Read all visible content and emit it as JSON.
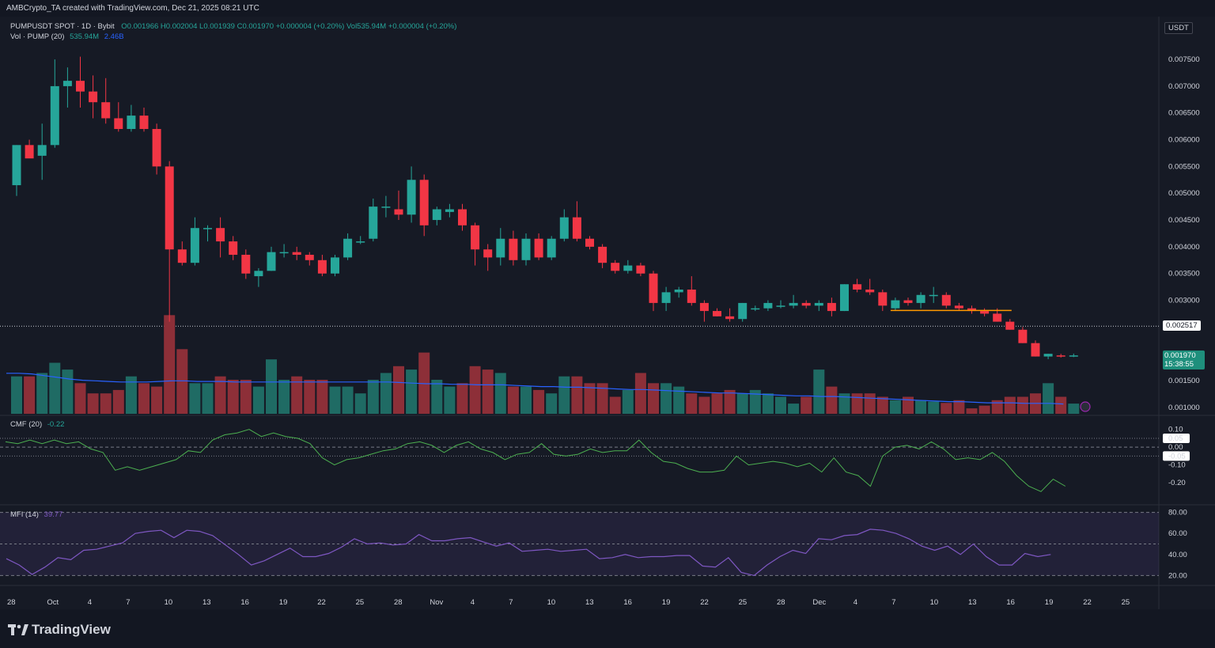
{
  "header": {
    "credit": "AMBCrypto_TA created with TradingView.com, Dec 21, 2025 08:21 UTC"
  },
  "legend": {
    "symbol": "PUMPUSDT SPOT · 1D · Bybit",
    "ohlc": "O0.001966  H0.002004  L0.001939  C0.001970  +0.000004 (+0.20%)  Vol535.94M  +0.000004 (+0.20%)",
    "vol_name": "Vol · PUMP (20)",
    "vol_value": "535.94M",
    "vol_ma": "2.46B",
    "cmf_name": "CMF (20)",
    "cmf_value": "-0.22",
    "mfi_name": "MFI (14)",
    "mfi_value": "39.77"
  },
  "currency_badge": "USDT",
  "price_tags": {
    "dotted_level": "0.002517",
    "last_price": "0.001970",
    "countdown": "15:38:55"
  },
  "brand": "TradingView",
  "colors": {
    "up": "#26a69a",
    "down": "#f23645",
    "vol_up": "#1f6b64",
    "vol_down": "#8d2f38",
    "ma": "#2962ff",
    "cmf": "#4caf50",
    "mfi": "#7e57c2",
    "bg": "#161a25"
  },
  "chart_data": [
    {
      "type": "candlestick",
      "ylim": [
        0.00085,
        0.0079
      ],
      "y_ticks": [
        "0.007500",
        "0.007000",
        "0.006500",
        "0.006000",
        "0.005500",
        "0.005000",
        "0.004500",
        "0.004000",
        "0.003500",
        "0.003000",
        "0.001500",
        "0.001000"
      ],
      "x_ticks": [
        "28",
        "Oct",
        "4",
        "7",
        "10",
        "13",
        "16",
        "19",
        "22",
        "25",
        "28",
        "Nov",
        "4",
        "7",
        "10",
        "13",
        "16",
        "19",
        "22",
        "25",
        "28",
        "Dec",
        "4",
        "7",
        "10",
        "13",
        "16",
        "19",
        "22",
        "25"
      ],
      "candles": [
        [
          0.00515,
          0.0059,
          0.00495,
          0.0059
        ],
        [
          0.0059,
          0.006,
          0.0057,
          0.00565
        ],
        [
          0.0057,
          0.0063,
          0.00525,
          0.0059
        ],
        [
          0.0059,
          0.0075,
          0.00585,
          0.007
        ],
        [
          0.007,
          0.00735,
          0.0066,
          0.0071
        ],
        [
          0.0071,
          0.00755,
          0.0066,
          0.0069
        ],
        [
          0.0069,
          0.0072,
          0.0064,
          0.0067
        ],
        [
          0.0067,
          0.00715,
          0.0063,
          0.0064
        ],
        [
          0.0064,
          0.0067,
          0.00615,
          0.0062
        ],
        [
          0.0062,
          0.00665,
          0.00615,
          0.00645
        ],
        [
          0.00645,
          0.0066,
          0.00615,
          0.0062
        ],
        [
          0.0062,
          0.0063,
          0.00535,
          0.0055
        ],
        [
          0.0055,
          0.0056,
          0.0026,
          0.00395
        ],
        [
          0.00395,
          0.0041,
          0.00365,
          0.0037
        ],
        [
          0.0037,
          0.00455,
          0.00365,
          0.00435
        ],
        [
          0.00435,
          0.0044,
          0.0041,
          0.00435
        ],
        [
          0.00435,
          0.00455,
          0.0038,
          0.0041
        ],
        [
          0.0041,
          0.0042,
          0.00375,
          0.00385
        ],
        [
          0.00385,
          0.00395,
          0.0034,
          0.0035
        ],
        [
          0.00345,
          0.0036,
          0.00325,
          0.00355
        ],
        [
          0.00355,
          0.004,
          0.00355,
          0.0039
        ],
        [
          0.0039,
          0.00405,
          0.0038,
          0.0039
        ],
        [
          0.0039,
          0.004,
          0.00375,
          0.00385
        ],
        [
          0.00385,
          0.0039,
          0.00365,
          0.00375
        ],
        [
          0.00375,
          0.00385,
          0.00345,
          0.0035
        ],
        [
          0.0035,
          0.00385,
          0.00345,
          0.0038
        ],
        [
          0.0038,
          0.00425,
          0.00375,
          0.00415
        ],
        [
          0.0041,
          0.0042,
          0.00405,
          0.0041
        ],
        [
          0.00415,
          0.0049,
          0.0041,
          0.00475
        ],
        [
          0.00475,
          0.00495,
          0.00455,
          0.00475
        ],
        [
          0.0047,
          0.00505,
          0.0045,
          0.0046
        ],
        [
          0.0046,
          0.0055,
          0.00445,
          0.00525
        ],
        [
          0.00525,
          0.00535,
          0.0042,
          0.0044
        ],
        [
          0.0045,
          0.00475,
          0.0044,
          0.0047
        ],
        [
          0.00465,
          0.0048,
          0.00455,
          0.0047
        ],
        [
          0.0047,
          0.0048,
          0.0043,
          0.0044
        ],
        [
          0.0044,
          0.00445,
          0.00365,
          0.00395
        ],
        [
          0.00395,
          0.00405,
          0.00355,
          0.0038
        ],
        [
          0.0038,
          0.00435,
          0.00365,
          0.00415
        ],
        [
          0.00415,
          0.0043,
          0.00365,
          0.00375
        ],
        [
          0.00375,
          0.00425,
          0.00365,
          0.00415
        ],
        [
          0.00415,
          0.00425,
          0.00375,
          0.0038
        ],
        [
          0.0038,
          0.0042,
          0.00375,
          0.00415
        ],
        [
          0.00415,
          0.0047,
          0.0041,
          0.00455
        ],
        [
          0.00455,
          0.00485,
          0.0041,
          0.00415
        ],
        [
          0.00415,
          0.0042,
          0.00395,
          0.004
        ],
        [
          0.004,
          0.00405,
          0.0036,
          0.0037
        ],
        [
          0.0037,
          0.00375,
          0.0035,
          0.00355
        ],
        [
          0.00355,
          0.00375,
          0.0035,
          0.00365
        ],
        [
          0.00365,
          0.0037,
          0.00345,
          0.0035
        ],
        [
          0.0035,
          0.00355,
          0.0028,
          0.00295
        ],
        [
          0.00295,
          0.00325,
          0.0028,
          0.00315
        ],
        [
          0.00315,
          0.00325,
          0.00305,
          0.0032
        ],
        [
          0.0032,
          0.00345,
          0.0029,
          0.00295
        ],
        [
          0.00295,
          0.003,
          0.0026,
          0.0028
        ],
        [
          0.0028,
          0.00285,
          0.0027,
          0.0027
        ],
        [
          0.0027,
          0.00285,
          0.0026,
          0.00265
        ],
        [
          0.00265,
          0.00295,
          0.0026,
          0.00295
        ],
        [
          0.00285,
          0.0029,
          0.0028,
          0.00285
        ],
        [
          0.00285,
          0.003,
          0.0028,
          0.00295
        ],
        [
          0.0029,
          0.003,
          0.00285,
          0.0029
        ],
        [
          0.0029,
          0.0031,
          0.00285,
          0.00295
        ],
        [
          0.00295,
          0.003,
          0.00285,
          0.0029
        ],
        [
          0.0029,
          0.003,
          0.0028,
          0.00295
        ],
        [
          0.00295,
          0.00305,
          0.0027,
          0.0028
        ],
        [
          0.0028,
          0.0033,
          0.0028,
          0.0033
        ],
        [
          0.0033,
          0.0034,
          0.00315,
          0.0032
        ],
        [
          0.0032,
          0.0034,
          0.0031,
          0.00315
        ],
        [
          0.00315,
          0.0032,
          0.0028,
          0.0029
        ],
        [
          0.00285,
          0.00305,
          0.0028,
          0.003
        ],
        [
          0.003,
          0.00305,
          0.0029,
          0.00295
        ],
        [
          0.00295,
          0.00315,
          0.00285,
          0.0031
        ],
        [
          0.0031,
          0.00325,
          0.00295,
          0.0031
        ],
        [
          0.0031,
          0.00315,
          0.00285,
          0.0029
        ],
        [
          0.0029,
          0.00295,
          0.0028,
          0.00285
        ],
        [
          0.00285,
          0.0029,
          0.00275,
          0.0028
        ],
        [
          0.0028,
          0.00285,
          0.0027,
          0.00275
        ],
        [
          0.00275,
          0.00285,
          0.0026,
          0.0026
        ],
        [
          0.0026,
          0.00265,
          0.00245,
          0.00245
        ],
        [
          0.00245,
          0.0025,
          0.0022,
          0.0022
        ],
        [
          0.0022,
          0.00225,
          0.00195,
          0.00195
        ],
        [
          0.00195,
          0.002,
          0.0019,
          0.002
        ],
        [
          0.00197,
          0.002,
          0.00193,
          0.00196
        ],
        [
          0.001966,
          0.002004,
          0.001939,
          0.00197
        ]
      ],
      "volume_rel": [
        0.55,
        0.55,
        0.6,
        0.75,
        0.65,
        0.45,
        0.3,
        0.3,
        0.35,
        0.55,
        0.45,
        0.4,
        1.45,
        0.95,
        0.45,
        0.45,
        0.55,
        0.5,
        0.5,
        0.4,
        0.8,
        0.5,
        0.55,
        0.5,
        0.5,
        0.4,
        0.4,
        0.3,
        0.5,
        0.6,
        0.7,
        0.65,
        0.9,
        0.5,
        0.4,
        0.45,
        0.7,
        0.65,
        0.6,
        0.4,
        0.4,
        0.35,
        0.3,
        0.55,
        0.55,
        0.45,
        0.45,
        0.25,
        0.35,
        0.6,
        0.45,
        0.45,
        0.4,
        0.3,
        0.25,
        0.3,
        0.35,
        0.3,
        0.35,
        0.3,
        0.25,
        0.15,
        0.25,
        0.65,
        0.4,
        0.3,
        0.3,
        0.3,
        0.25,
        0.2,
        0.25,
        0.2,
        0.18,
        0.16,
        0.2,
        0.08,
        0.12,
        0.2,
        0.25,
        0.25,
        0.3,
        0.45,
        0.25,
        0.15
      ],
      "volume_ma_rel": [
        0.7,
        0.7,
        0.69,
        0.66,
        0.63,
        0.6,
        0.58,
        0.57,
        0.56,
        0.55,
        0.55,
        0.55,
        0.56,
        0.57,
        0.57,
        0.56,
        0.56,
        0.56,
        0.55,
        0.55,
        0.55,
        0.55,
        0.55,
        0.55,
        0.55,
        0.55,
        0.55,
        0.55,
        0.55,
        0.55,
        0.55,
        0.54,
        0.53,
        0.52,
        0.52,
        0.51,
        0.51,
        0.5,
        0.5,
        0.5,
        0.49,
        0.48,
        0.47,
        0.47,
        0.46,
        0.46,
        0.45,
        0.44,
        0.43,
        0.42,
        0.42,
        0.41,
        0.4,
        0.39,
        0.38,
        0.37,
        0.36,
        0.36,
        0.35,
        0.34,
        0.33,
        0.32,
        0.31,
        0.31,
        0.3,
        0.3,
        0.29,
        0.28,
        0.27,
        0.26,
        0.25,
        0.24,
        0.23,
        0.22,
        0.21,
        0.21,
        0.2,
        0.19,
        0.19,
        0.19,
        0.18,
        0.18,
        0.18,
        0.17
      ]
    },
    {
      "type": "line",
      "title": "CMF (20)",
      "ylim": [
        -0.28,
        0.13
      ],
      "y_ticks": [
        "0.10",
        "0.05",
        "0.00",
        "-0.05",
        "-0.10",
        "-0.20"
      ],
      "values": [
        0.03,
        0.02,
        0.04,
        0.02,
        0.04,
        0.02,
        0.03,
        -0.01,
        -0.03,
        -0.13,
        -0.11,
        -0.13,
        -0.11,
        -0.09,
        -0.07,
        -0.02,
        -0.03,
        0.04,
        0.07,
        0.08,
        0.1,
        0.06,
        0.08,
        0.06,
        0.05,
        0.02,
        -0.06,
        -0.1,
        -0.07,
        -0.06,
        -0.04,
        -0.02,
        -0.01,
        0.02,
        0.03,
        0.01,
        -0.03,
        0.01,
        0.03,
        -0.01,
        -0.03,
        -0.07,
        -0.04,
        -0.03,
        0.02,
        -0.04,
        -0.05,
        -0.04,
        -0.01,
        -0.03,
        -0.02,
        -0.02,
        0.04,
        -0.03,
        -0.08,
        -0.09,
        -0.12,
        -0.14,
        -0.14,
        -0.13,
        -0.05,
        -0.1,
        -0.09,
        -0.08,
        -0.09,
        -0.11,
        -0.09,
        -0.14,
        -0.06,
        -0.14,
        -0.16,
        -0.22,
        -0.05,
        0.0,
        0.01,
        -0.01,
        0.03,
        -0.01,
        -0.07,
        -0.06,
        -0.07,
        -0.03,
        -0.08,
        -0.16,
        -0.22,
        -0.25,
        -0.18,
        -0.22
      ]
    },
    {
      "type": "line",
      "title": "MFI (14)",
      "ylim": [
        12,
        82
      ],
      "y_ticks": [
        "80.00",
        "60.00",
        "40.00",
        "20.00"
      ],
      "values": [
        36,
        30,
        21,
        28,
        37,
        35,
        44,
        45,
        48,
        51,
        60,
        62,
        63,
        56,
        63,
        62,
        58,
        49,
        40,
        30,
        34,
        40,
        46,
        38,
        38,
        41,
        47,
        55,
        50,
        51,
        49,
        50,
        59,
        53,
        53,
        55,
        56,
        52,
        48,
        51,
        43,
        44,
        45,
        43,
        44,
        45,
        36,
        37,
        40,
        37,
        38,
        38,
        39,
        39,
        29,
        28,
        37,
        23,
        20,
        30,
        38,
        44,
        41,
        55,
        54,
        58,
        59,
        64,
        63,
        60,
        55,
        48,
        44,
        48,
        40,
        50,
        38,
        30,
        30,
        41,
        38,
        40
      ]
    }
  ]
}
